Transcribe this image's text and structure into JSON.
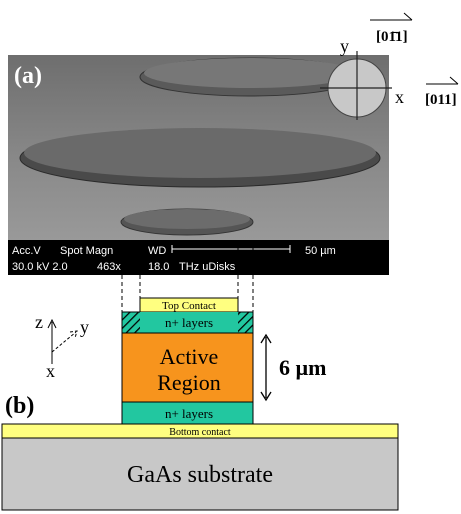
{
  "panel_a": {
    "label": "(a)",
    "orientation": {
      "y_axis": "y",
      "x_axis": "x",
      "y_direction": "[01̄1]",
      "x_direction": "[011]"
    },
    "sem_info": {
      "header_1": "Acc.V",
      "header_2": "Spot Magn",
      "header_3": "WD",
      "scale": "50 µm",
      "row_1": "30.0 kV 2.0",
      "row_2": "463x",
      "row_3": "18.0",
      "row_4": "THz uDisks"
    }
  },
  "panel_b": {
    "label": "(b)",
    "axes": {
      "z": "z",
      "y": "y",
      "x": "x"
    },
    "layers": {
      "top_contact": "Top Contact",
      "upper_n_layers": "n+ layers",
      "active_region_1": "Active",
      "active_region_2": "Region",
      "lower_n_layers": "n+ layers",
      "bottom_contact": "Bottom contact",
      "substrate": "GaAs substrate"
    },
    "height": "6 µm"
  }
}
